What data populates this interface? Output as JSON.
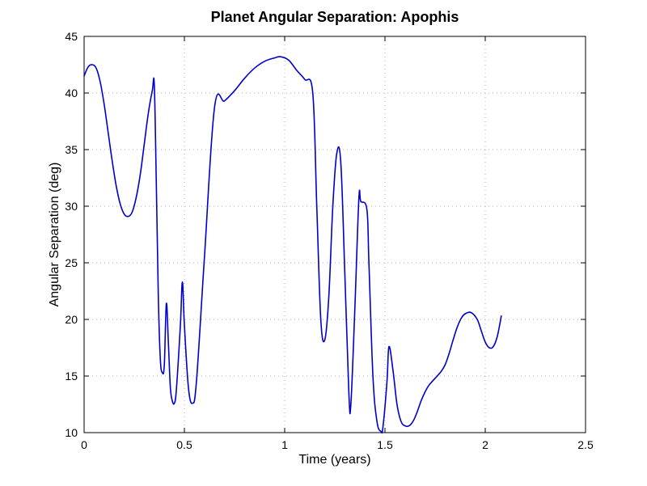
{
  "chart_data": {
    "type": "line",
    "title": "Planet Angular Separation: Apophis",
    "xlabel": "Time (years)",
    "ylabel": "Angular Separation (deg)",
    "xlim": [
      0,
      2.5
    ],
    "ylim": [
      10,
      45
    ],
    "xticks": [
      0,
      0.5,
      1,
      1.5,
      2,
      2.5
    ],
    "xtick_labels": [
      "0",
      "0.5",
      "1",
      "1.5",
      "2",
      "2.5"
    ],
    "yticks": [
      10,
      15,
      20,
      25,
      30,
      35,
      40,
      45
    ],
    "ytick_labels": [
      "10",
      "15",
      "20",
      "25",
      "30",
      "35",
      "40",
      "45"
    ],
    "grid": true,
    "line_color": "#0000cc",
    "series": [
      {
        "x": [
          0.0,
          0.02,
          0.04,
          0.06,
          0.08,
          0.1,
          0.12,
          0.14,
          0.16,
          0.18,
          0.2,
          0.22,
          0.24,
          0.26,
          0.28,
          0.3,
          0.32,
          0.34,
          0.35,
          0.36,
          0.37,
          0.38,
          0.39,
          0.4,
          0.41,
          0.42,
          0.43,
          0.44,
          0.45,
          0.46,
          0.48,
          0.49,
          0.5,
          0.52,
          0.54,
          0.56,
          0.6,
          0.65,
          0.7,
          0.75,
          0.8,
          0.85,
          0.9,
          0.95,
          0.98,
          1.02,
          1.06,
          1.1,
          1.14,
          1.16,
          1.18,
          1.2,
          1.22,
          1.24,
          1.26,
          1.28,
          1.3,
          1.32,
          1.33,
          1.35,
          1.37,
          1.38,
          1.41,
          1.42,
          1.44,
          1.46,
          1.48,
          1.49,
          1.51,
          1.52,
          1.54,
          1.56,
          1.58,
          1.6,
          1.62,
          1.64,
          1.66,
          1.68,
          1.7,
          1.72,
          1.75,
          1.78,
          1.8,
          1.82,
          1.84,
          1.86,
          1.88,
          1.9,
          1.93,
          1.96,
          1.98,
          2.0,
          2.02,
          2.04,
          2.06,
          2.08
        ],
        "y": [
          41.5,
          42.3,
          42.5,
          42.2,
          41.0,
          39.0,
          36.5,
          34.0,
          31.8,
          30.2,
          29.3,
          29.1,
          29.5,
          30.8,
          32.8,
          35.5,
          38.2,
          40.2,
          40.7,
          32.0,
          22.0,
          16.5,
          15.3,
          16.0,
          21.4,
          18.0,
          14.0,
          12.8,
          12.6,
          13.8,
          19.5,
          23.3,
          19.5,
          14.0,
          12.6,
          14.5,
          25.5,
          38.7,
          39.3,
          40.2,
          41.3,
          42.2,
          42.8,
          43.1,
          43.2,
          42.9,
          42.0,
          41.2,
          40.0,
          30.0,
          20.0,
          18.2,
          22.0,
          30.0,
          34.7,
          33.8,
          24.0,
          13.5,
          12.5,
          21.0,
          30.7,
          30.4,
          29.7,
          25.0,
          15.0,
          11.0,
          10.1,
          10.5,
          14.5,
          17.6,
          15.5,
          12.5,
          11.0,
          10.6,
          10.6,
          11.0,
          11.8,
          12.8,
          13.6,
          14.2,
          14.8,
          15.4,
          16.0,
          17.0,
          18.2,
          19.3,
          20.1,
          20.5,
          20.6,
          20.0,
          19.0,
          18.0,
          17.5,
          17.6,
          18.5,
          20.3
        ]
      }
    ]
  }
}
